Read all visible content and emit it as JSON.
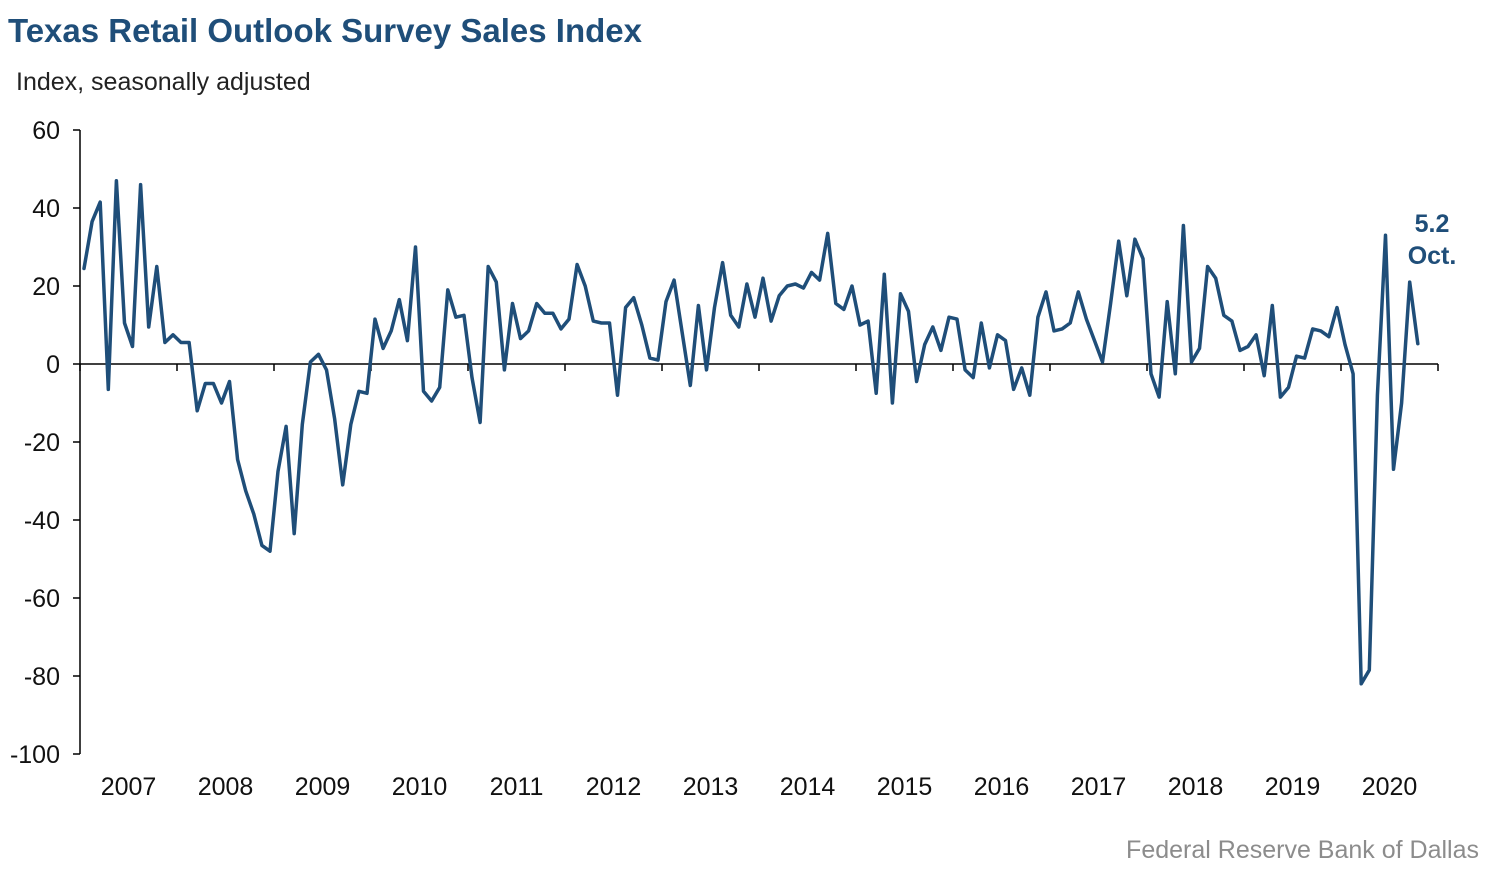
{
  "title": "Texas Retail Outlook Survey Sales Index",
  "subtitle": "Index, seasonally adjusted",
  "source": "Federal Reserve Bank of Dallas",
  "colors": {
    "line": "#1f4e79",
    "axis": "#000000",
    "title": "#1f4e79",
    "source": "#8c8c8c"
  },
  "chart_data": {
    "type": "line",
    "title": "Texas Retail Outlook Survey Sales Index",
    "ylabel": "Index, seasonally adjusted",
    "xlabel": "",
    "ylim": [
      -100,
      60
    ],
    "yticks": [
      60,
      40,
      20,
      0,
      -20,
      -40,
      -60,
      -80,
      -100
    ],
    "xtick_labels": [
      "2007",
      "2008",
      "2009",
      "2010",
      "2011",
      "2012",
      "2013",
      "2014",
      "2015",
      "2016",
      "2017",
      "2018",
      "2019",
      "2020"
    ],
    "x_start": "2007-01",
    "x_end": "2020-10",
    "grid": false,
    "legend": "none",
    "annotation": {
      "value": "5.2",
      "label": "Oct."
    },
    "series": [
      {
        "values": [
          24.5,
          36.5,
          41.5,
          -6.5,
          47,
          10.5,
          4.5,
          46,
          9.5,
          25,
          5.5,
          7.5,
          5.5,
          5.5,
          -12,
          -5,
          -5,
          -10,
          -4.5,
          -24.5,
          -32.5,
          -38.5,
          -46.5,
          -48,
          -27.5,
          -16,
          -43.5,
          -15.5,
          0.5,
          2.5,
          -1.5,
          -14,
          -31,
          -15.5,
          -7,
          -7.5,
          11.5,
          4,
          8.5,
          16.5,
          6,
          30,
          -7,
          -9.5,
          -6,
          19,
          12,
          12.5,
          -3.5,
          -15,
          25,
          21,
          -1.5,
          15.5,
          6.5,
          8.5,
          15.5,
          13,
          13,
          9,
          11.5,
          25.5,
          20,
          11,
          10.5,
          10.5,
          -8,
          14.5,
          17,
          10,
          1.5,
          1,
          16,
          21.5,
          8,
          -5.5,
          15,
          -1.5,
          14.5,
          26,
          12.5,
          9.5,
          20.5,
          12,
          22,
          11,
          17.5,
          20,
          20.5,
          19.5,
          23.5,
          21.5,
          33.5,
          15.5,
          14,
          20,
          10,
          11,
          -7.5,
          23,
          -10,
          18,
          13.5,
          -4.5,
          5,
          9.5,
          3.5,
          12,
          11.5,
          -1.5,
          -3.5,
          10.5,
          -1,
          7.5,
          6,
          -6.5,
          -1,
          -8,
          12,
          18.5,
          8.5,
          9,
          10.5,
          18.5,
          11.5,
          6,
          0.5,
          15.5,
          31.5,
          17.5,
          32,
          27,
          -2.5,
          -8.5,
          16,
          -2.5,
          35.5,
          0.5,
          4,
          25,
          22,
          12.5,
          11,
          3.5,
          4.5,
          7.5,
          -3,
          15,
          -8.5,
          -6,
          2,
          1.5,
          9,
          8.5,
          7,
          14.5,
          5,
          -2.5,
          -82,
          -78.5,
          -8,
          33,
          -27,
          -10,
          21,
          5.2
        ]
      }
    ]
  }
}
